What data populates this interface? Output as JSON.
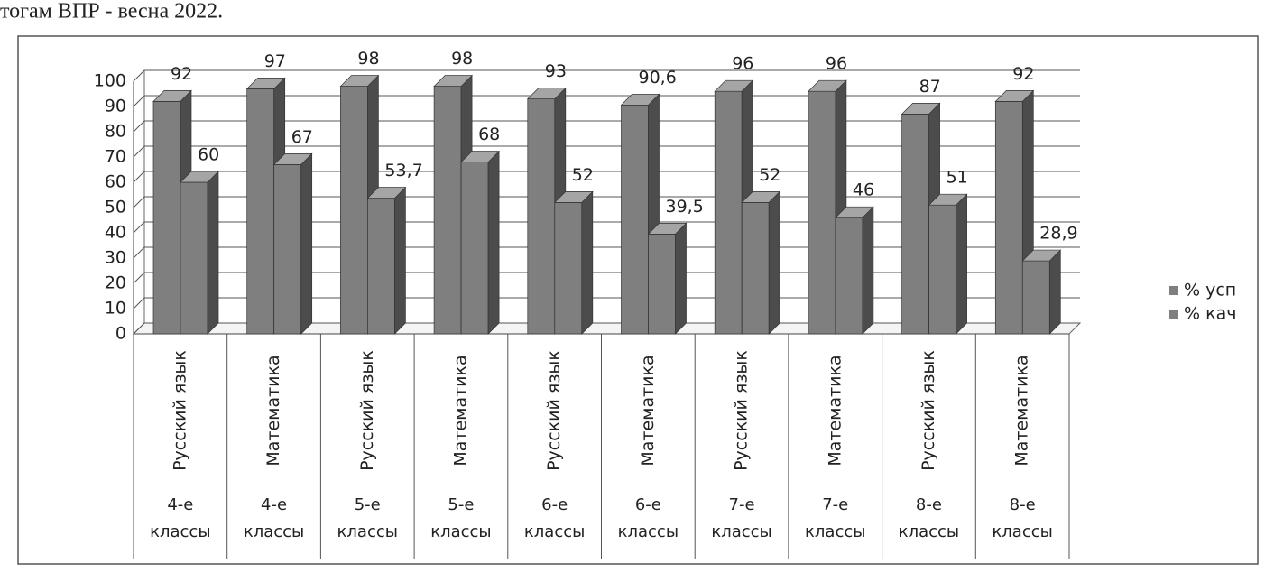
{
  "chart_data": {
    "type": "bar3d",
    "title": "тогам ВПР  - весна 2022.",
    "categories": [
      "Русский язык",
      "Математика",
      "Русский язык",
      "Математика",
      "Русский язык",
      "Математика",
      "Русский язык",
      "Математика",
      "Русский язык",
      "Математика"
    ],
    "category_groups": [
      "4-е классы",
      "4-е классы",
      "5-е классы",
      "5-е классы",
      "6-е классы",
      "6-е классы",
      "7-е классы",
      "7-е классы",
      "8-е классы",
      "8-е классы"
    ],
    "series": [
      {
        "name": "% усп",
        "color": "#7f7f7f",
        "values": [
          92,
          97,
          98,
          98,
          93,
          90.6,
          96,
          96,
          87,
          92
        ],
        "value_labels": [
          "92",
          "97",
          "98",
          "98",
          "93",
          "90,6",
          "96",
          "96",
          "87",
          "92"
        ]
      },
      {
        "name": "% кач",
        "color": "#7f7f7f",
        "values": [
          60,
          67,
          53.7,
          68,
          52,
          39.5,
          52,
          46,
          51,
          28.9
        ],
        "value_labels": [
          "60",
          "67",
          "53,7",
          "68",
          "52",
          "39,5",
          "52",
          "46",
          "51",
          "28,9"
        ]
      }
    ],
    "ylim": [
      0,
      100
    ],
    "yticks": [
      0,
      10,
      20,
      30,
      40,
      50,
      60,
      70,
      80,
      90,
      100
    ],
    "grid": true,
    "legend": "right"
  }
}
